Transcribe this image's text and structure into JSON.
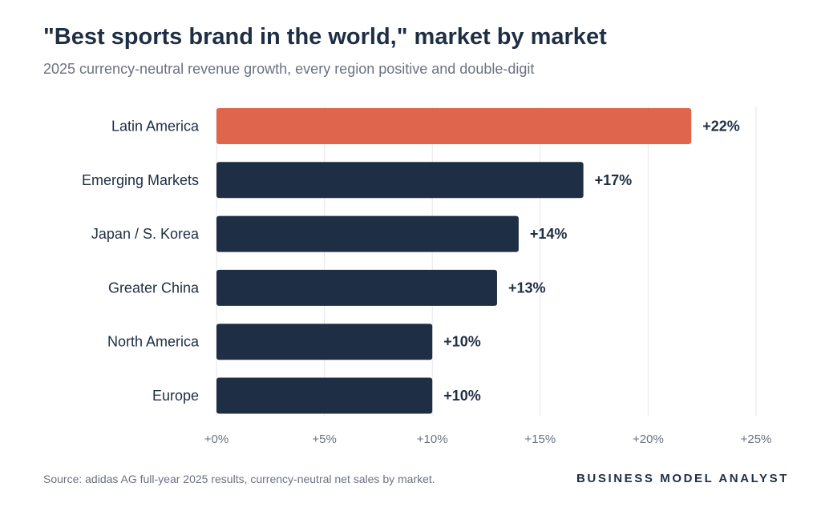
{
  "header": {
    "title": "\"Best sports brand in the world,\" market by market",
    "subtitle": "2025 currency-neutral revenue growth, every region positive and double-digit"
  },
  "footer": {
    "source": "Source: adidas AG full-year 2025 results, currency-neutral net sales by market.",
    "brand": "BUSINESS MODEL ANALYST"
  },
  "colors": {
    "highlight": "#e0654d",
    "bar": "#1e2e44",
    "grid": "#e5e7eb",
    "tick_text": "#6b7280",
    "label_text": "#1e2e44"
  },
  "chart_data": {
    "type": "bar",
    "orientation": "horizontal",
    "categories": [
      "Latin America",
      "Emerging Markets",
      "Japan / S. Korea",
      "Greater China",
      "North America",
      "Europe"
    ],
    "values": [
      22,
      17,
      14,
      13,
      10,
      10
    ],
    "data_labels": [
      "+22%",
      "+17%",
      "+14%",
      "+13%",
      "+10%",
      "+10%"
    ],
    "highlight": [
      "Latin America"
    ],
    "xlim": [
      0,
      25
    ],
    "xticks": [
      0,
      5,
      10,
      15,
      20,
      25
    ],
    "xtick_labels": [
      "+0%",
      "+5%",
      "+10%",
      "+15%",
      "+20%",
      "+25%"
    ],
    "grid": true
  }
}
